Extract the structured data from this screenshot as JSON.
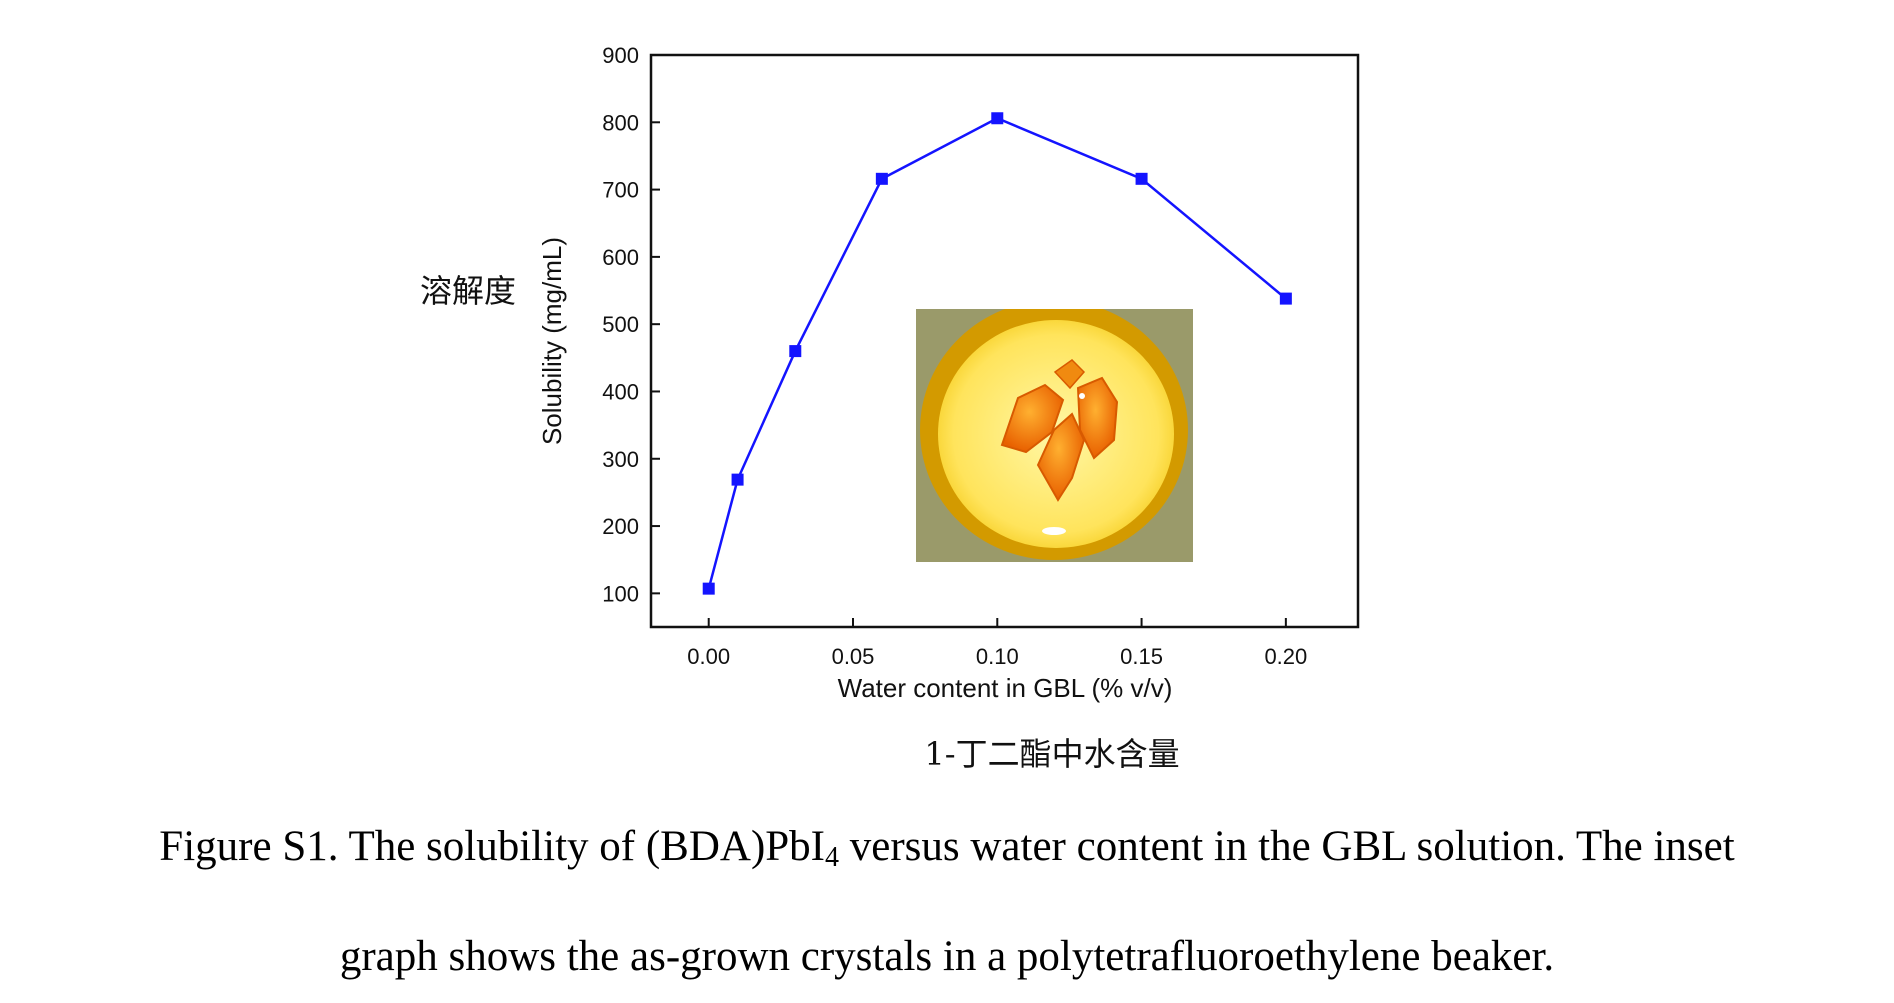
{
  "chart_data": {
    "type": "line",
    "x": [
      0.0,
      0.01,
      0.03,
      0.06,
      0.1,
      0.15,
      0.2
    ],
    "series": [
      {
        "values": [
          107,
          269,
          460,
          716,
          806,
          716,
          538
        ],
        "color": "#1414ff",
        "marker": "square"
      }
    ],
    "xlabel": "Water content in GBL (% v/v)",
    "ylabel": "Solubility (mg/mL)",
    "x_ticks": [
      "0.00",
      "0.05",
      "0.10",
      "0.15",
      "0.20"
    ],
    "y_ticks": [
      "100",
      "200",
      "300",
      "400",
      "500",
      "600",
      "700",
      "800",
      "900"
    ],
    "xlim": [
      -0.02,
      0.225
    ],
    "ylim": [
      50,
      900
    ],
    "grid": false,
    "legend": "none"
  },
  "annotations": {
    "ylabel_cn": "溶解度",
    "xlabel_cn": "1-丁二酯中水含量"
  },
  "inset": {
    "kind": "photo",
    "subject": "beaker-with-orange-crystals"
  },
  "caption": {
    "line1_before": "Figure S1. The solubility of (BDA)PbI",
    "line1_sub": "4",
    "line1_after": " versus water content in the GBL solution. The inset",
    "line2": "graph shows the as-grown crystals in a polytetrafluoroethylene beaker."
  },
  "colors": {
    "series": "#1414ff",
    "axis": "#111111"
  }
}
